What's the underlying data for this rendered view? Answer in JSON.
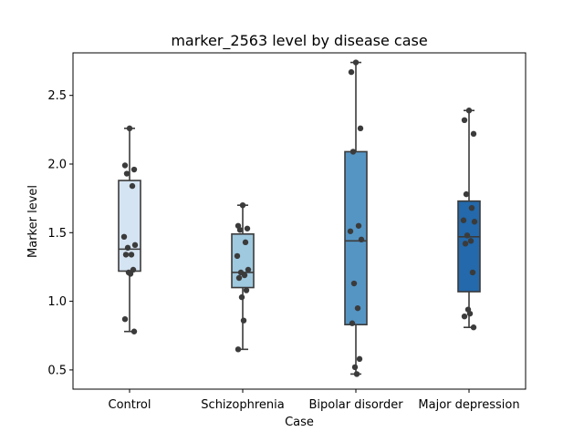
{
  "chart_data": {
    "type": "box",
    "title": "marker_2563 level by disease case",
    "xlabel": "Case",
    "ylabel": "Marker level",
    "ylim": [
      0.36,
      2.81
    ],
    "yticks": [
      0.5,
      1.0,
      1.5,
      2.0,
      2.5
    ],
    "ytick_labels": [
      "0.5",
      "1.0",
      "1.5",
      "2.0",
      "2.5"
    ],
    "grid": false,
    "categories": [
      "Control",
      "Schizophrenia",
      "Bipolar disorder",
      "Major depression"
    ],
    "colors": [
      "#d5e4f2",
      "#9fc9df",
      "#5595c4",
      "#2369ab"
    ],
    "series": [
      {
        "box": {
          "whislo": 0.78,
          "q1": 1.22,
          "med": 1.38,
          "q3": 1.88,
          "whishi": 2.26
        },
        "points": [
          2.26,
          1.99,
          1.96,
          1.93,
          1.84,
          1.47,
          1.41,
          1.39,
          1.34,
          1.34,
          1.23,
          1.21,
          1.2,
          0.87,
          0.78
        ]
      },
      {
        "box": {
          "whislo": 0.65,
          "q1": 1.1,
          "med": 1.21,
          "q3": 1.49,
          "whishi": 1.7
        },
        "points": [
          1.7,
          1.55,
          1.53,
          1.52,
          1.43,
          1.33,
          1.23,
          1.21,
          1.19,
          1.17,
          1.08,
          1.03,
          0.86,
          0.65
        ]
      },
      {
        "box": {
          "whislo": 0.47,
          "q1": 0.83,
          "med": 1.44,
          "q3": 2.09,
          "whishi": 2.74
        },
        "points": [
          2.74,
          2.67,
          2.26,
          2.09,
          1.55,
          1.51,
          1.45,
          1.13,
          0.95,
          0.84,
          0.58,
          0.52,
          0.47
        ]
      },
      {
        "box": {
          "whislo": 0.81,
          "q1": 1.07,
          "med": 1.47,
          "q3": 1.73,
          "whishi": 2.39
        },
        "points": [
          2.39,
          2.32,
          2.22,
          1.78,
          1.68,
          1.59,
          1.58,
          1.48,
          1.44,
          1.42,
          1.21,
          0.94,
          0.91,
          0.89,
          0.81
        ]
      }
    ]
  }
}
